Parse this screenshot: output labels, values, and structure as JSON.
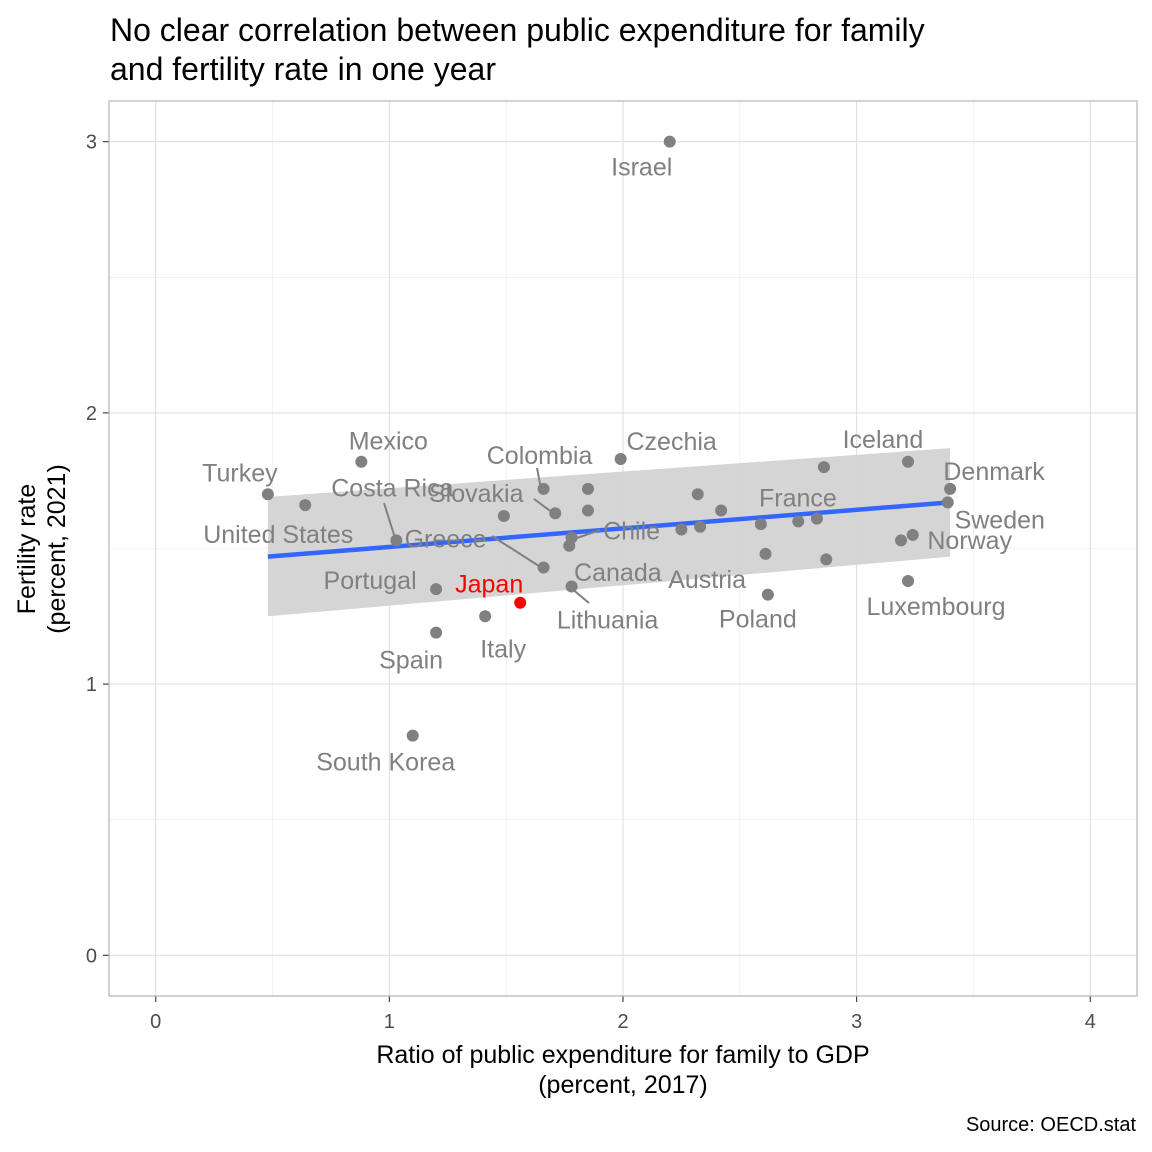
{
  "chart_data": {
    "type": "scatter",
    "title_lines": [
      "No clear correlation between public expenditure for family",
      "and fertility rate in one year"
    ],
    "xlabel_lines": [
      "Ratio of public expenditure for family to GDP",
      "(percent, 2017)"
    ],
    "ylabel_lines": [
      "Fertility rate",
      "(percent, 2021)"
    ],
    "caption": "Source: OECD.stat",
    "xlim": [
      -0.2,
      4.2
    ],
    "ylim": [
      -0.15,
      3.15
    ],
    "x_ticks": [
      0,
      1,
      2,
      3,
      4
    ],
    "x_tick_labels": [
      "0",
      "1",
      "2",
      "3",
      "4"
    ],
    "y_ticks": [
      0,
      1,
      2,
      3
    ],
    "y_tick_labels": [
      "0",
      "1",
      "2",
      "3"
    ],
    "grid": true,
    "point_color": "#808080",
    "highlight_color": "#ff0000",
    "trend_color": "#3366ff",
    "band_color": "#d3d3d3",
    "trend_line": {
      "x": [
        0.48,
        3.4
      ],
      "y": [
        1.47,
        1.67
      ]
    },
    "confidence_band": {
      "x": [
        0.48,
        3.4
      ],
      "lower": [
        1.25,
        1.47
      ],
      "upper": [
        1.69,
        1.87
      ]
    },
    "points": [
      {
        "label": "Israel",
        "x": 2.2,
        "y": 3.0
      },
      {
        "label": "Mexico",
        "x": 0.88,
        "y": 1.82
      },
      {
        "label": "Turkey",
        "x": 0.48,
        "y": 1.7
      },
      {
        "label": "United States",
        "x": 0.64,
        "y": 1.66
      },
      {
        "label": "Costa Rica",
        "x": 1.03,
        "y": 1.53
      },
      {
        "label": "Greece",
        "x": 1.66,
        "y": 1.43
      },
      {
        "label": "Portugal",
        "x": 1.2,
        "y": 1.35
      },
      {
        "label": "Japan",
        "x": 1.56,
        "y": 1.3,
        "highlight": true
      },
      {
        "label": "Italy",
        "x": 1.41,
        "y": 1.25
      },
      {
        "label": "Spain",
        "x": 1.2,
        "y": 1.19
      },
      {
        "label": "South Korea",
        "x": 1.1,
        "y": 0.81
      },
      {
        "label": "Colombia",
        "x": 1.66,
        "y": 1.72
      },
      {
        "label": "Slovakia",
        "x": 1.71,
        "y": 1.63
      },
      {
        "label": "Chile",
        "x": 1.78,
        "y": 1.54
      },
      {
        "label": "Canada",
        "x": 1.49,
        "y": 1.62
      },
      {
        "label": "Lithuania",
        "x": 1.78,
        "y": 1.36
      },
      {
        "label": "Czechia",
        "x": 1.99,
        "y": 1.83
      },
      {
        "label": "Austria",
        "x": 2.33,
        "y": 1.58
      },
      {
        "label": "Poland",
        "x": 2.62,
        "y": 1.33
      },
      {
        "label": "France",
        "x": 2.83,
        "y": 1.61
      },
      {
        "label": "Iceland",
        "x": 2.86,
        "y": 1.8
      },
      {
        "label": "Denmark",
        "x": 3.4,
        "y": 1.72
      },
      {
        "label": "Sweden",
        "x": 3.39,
        "y": 1.67
      },
      {
        "label": "Norway",
        "x": 3.24,
        "y": 1.55
      },
      {
        "label": "Luxembourg",
        "x": 3.22,
        "y": 1.38
      },
      {
        "x": 1.85,
        "y": 1.72
      },
      {
        "x": 1.85,
        "y": 1.64
      },
      {
        "x": 1.77,
        "y": 1.51
      },
      {
        "x": 2.25,
        "y": 1.57
      },
      {
        "x": 2.32,
        "y": 1.7
      },
      {
        "x": 2.42,
        "y": 1.64
      },
      {
        "x": 2.59,
        "y": 1.59
      },
      {
        "x": 2.61,
        "y": 1.48
      },
      {
        "x": 2.75,
        "y": 1.6
      },
      {
        "x": 2.87,
        "y": 1.46
      },
      {
        "x": 3.22,
        "y": 1.82
      },
      {
        "x": 3.19,
        "y": 1.53
      }
    ]
  }
}
